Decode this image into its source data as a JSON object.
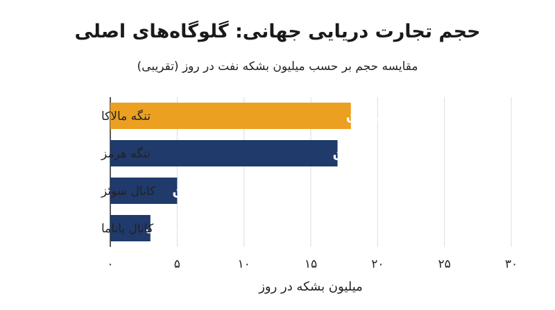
{
  "title": "حجم تجارت دریایی جهانی: گلوگاه‌های اصلی",
  "subtitle": "مقایسه حجم بر حسب میلیون بشکه نفت در روز (تقریبی)",
  "colors": {
    "highlight": "#eba021",
    "bar": "#1f3a6b",
    "grid": "#dddddd",
    "axis": "#222222"
  },
  "chart_data": {
    "type": "bar",
    "orientation": "horizontal",
    "categories": [
      "تنگه مالاکا",
      "تنگه هرمز",
      "کانال سوئز",
      "کانال پاناما"
    ],
    "values": [
      18,
      17,
      5,
      3
    ],
    "data_labels": [
      "۱۸ میلیون",
      "۱۷ میلیون",
      "۵ میلیون",
      "۳ میلیون"
    ],
    "highlight_index": 0,
    "xlabel": "میلیون بشکه در روز",
    "ylabel": "",
    "xlim": [
      0,
      30
    ],
    "xticks": [
      0,
      5,
      10,
      15,
      20,
      25,
      30
    ],
    "xtick_labels": [
      "۰",
      "۵",
      "۱۰",
      "۱۵",
      "۲۰",
      "۲۵",
      "۳۰"
    ],
    "grid": true
  }
}
